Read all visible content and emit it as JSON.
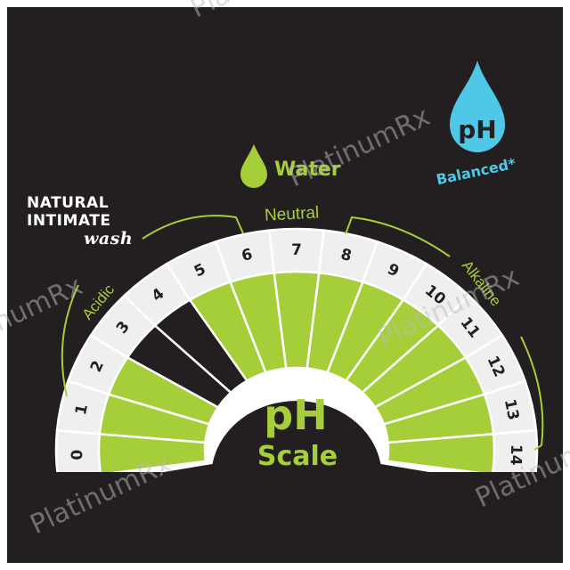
{
  "brand": {
    "line1": "NATURAL",
    "line2": "INTIMATE",
    "line3": "wash"
  },
  "water": {
    "label": "Water",
    "icon": "water-drop-icon",
    "color": "#a6ce39"
  },
  "badge": {
    "ph": "pH",
    "text": "Balanced*",
    "icon": "drop-icon",
    "color": "#4fc8e8"
  },
  "ranges": {
    "acidic": "Acidic",
    "neutral": "Neutral",
    "alkaline": "Alkaline"
  },
  "center": {
    "title": "pH",
    "subtitle": "Scale"
  },
  "scale": {
    "labels": [
      "0",
      "1",
      "2",
      "3",
      "4",
      "5",
      "6",
      "7",
      "8",
      "9",
      "10",
      "11",
      "12",
      "13",
      "14"
    ],
    "highlighted_dark": [
      "3",
      "4"
    ],
    "colors": {
      "green": "#a6ce39",
      "dark": "#231f20",
      "band": "#efefef",
      "text": "#231f20"
    }
  },
  "watermark": "PlatinumRx"
}
